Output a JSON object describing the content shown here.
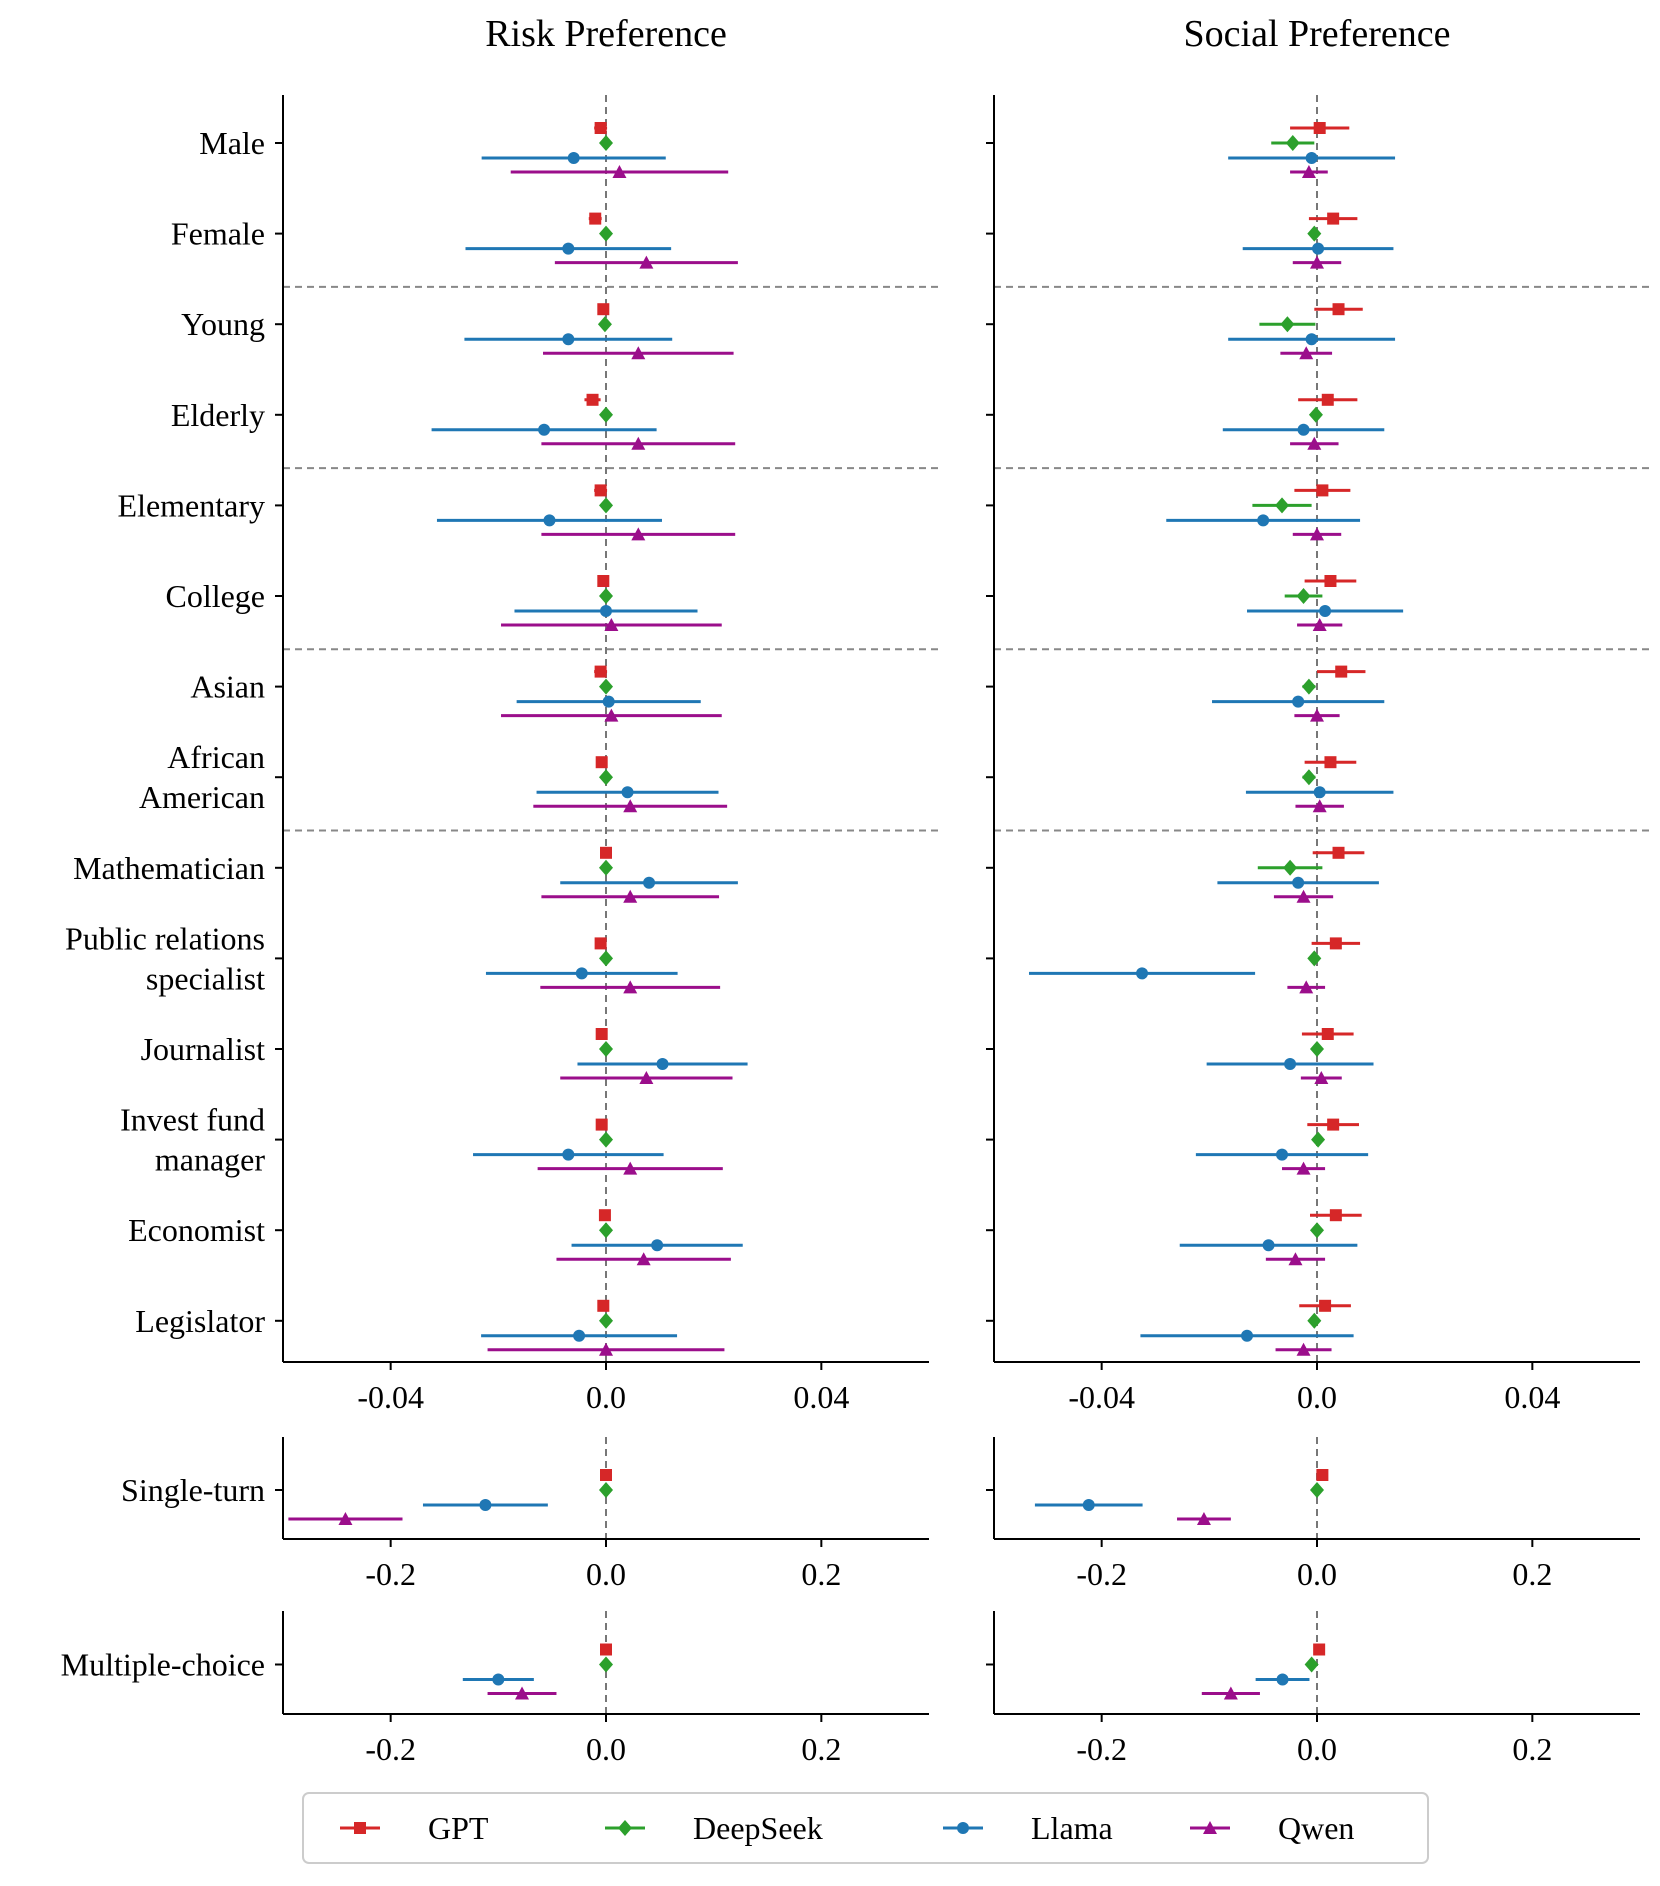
{
  "colors": {
    "GPT": "#d62728",
    "DeepSeek": "#2ca02c",
    "Llama": "#1f77b4",
    "Qwen": "#9b0e8b",
    "GPT_hex": "#d62728"
  },
  "chart_data": [
    {
      "id": "risk-main",
      "type": "forest",
      "title": "Risk Preference",
      "xlim": [
        -0.06,
        0.06
      ],
      "xticks": [
        -0.04,
        0.0,
        0.04
      ],
      "xtick_labels": [
        "-0.04",
        "0.0",
        "0.04"
      ],
      "categories": [
        "Male",
        "Female",
        "Young",
        "Elderly",
        "Elementary",
        "College",
        "Asian",
        "African American",
        "Mathematician",
        "Public relations specialist",
        "Journalist",
        "Invest fund manager",
        "Economist",
        "Legislator"
      ],
      "group_separators_after": [
        1,
        3,
        5,
        7
      ],
      "series": [
        {
          "name": "GPT",
          "values": [
            -0.001,
            -0.002,
            -0.0005,
            -0.0025,
            -0.001,
            -0.0005,
            -0.001,
            -0.0008,
            0.0,
            -0.001,
            -0.0008,
            -0.0008,
            -0.0002,
            -0.0005
          ],
          "errors": [
            0.0012,
            0.0012,
            0.0008,
            0.0015,
            0.0012,
            0.0008,
            0.0012,
            0.0008,
            0.0008,
            0.0008,
            0.0008,
            0.0008,
            0.0008,
            0.0008
          ]
        },
        {
          "name": "DeepSeek",
          "values": [
            0.0,
            0.0,
            -0.0002,
            0.0,
            0.0,
            0.0,
            0.0,
            0.0,
            0.0,
            0.0,
            0.0,
            0.0,
            0.0,
            0.0
          ],
          "errors": [
            0.0003,
            0.0003,
            0.0003,
            0.0003,
            0.0003,
            0.0003,
            0.0003,
            0.0003,
            0.0003,
            0.0003,
            0.0003,
            0.0003,
            0.0003,
            0.0003
          ]
        },
        {
          "name": "Llama",
          "values": [
            -0.006,
            -0.007,
            -0.007,
            -0.0115,
            -0.0105,
            0.0,
            0.0005,
            0.004,
            0.008,
            -0.0045,
            0.0105,
            -0.007,
            0.0095,
            -0.005
          ],
          "errors": [
            0.0171,
            0.0191,
            0.0193,
            0.0209,
            0.0209,
            0.017,
            0.0171,
            0.0169,
            0.0165,
            0.0178,
            0.0158,
            0.0177,
            0.0159,
            0.0182
          ]
        },
        {
          "name": "Qwen",
          "values": [
            0.0025,
            0.0075,
            0.006,
            0.006,
            0.006,
            0.001,
            0.001,
            0.0045,
            0.0045,
            0.0045,
            0.0075,
            0.0045,
            0.007,
            0.0
          ],
          "errors": [
            0.0202,
            0.017,
            0.0177,
            0.018,
            0.018,
            0.0205,
            0.0205,
            0.018,
            0.0165,
            0.0167,
            0.016,
            0.0172,
            0.0162,
            0.022
          ]
        }
      ]
    },
    {
      "id": "social-main",
      "type": "forest",
      "title": "Social Preference",
      "xlim": [
        -0.06,
        0.06
      ],
      "xticks": [
        -0.04,
        0.0,
        0.04
      ],
      "xtick_labels": [
        "-0.04",
        "0.0",
        "0.04"
      ],
      "categories": [
        "Male",
        "Female",
        "Young",
        "Elderly",
        "Elementary",
        "College",
        "Asian",
        "African American",
        "Mathematician",
        "Public relations specialist",
        "Journalist",
        "Invest fund manager",
        "Economist",
        "Legislator"
      ],
      "group_separators_after": [
        1,
        3,
        5,
        7
      ],
      "series": [
        {
          "name": "GPT",
          "values": [
            0.0005,
            0.003,
            0.004,
            0.002,
            0.001,
            0.0025,
            0.0045,
            0.0025,
            0.004,
            0.0035,
            0.002,
            0.003,
            0.0035,
            0.0015
          ],
          "errors": [
            0.0055,
            0.0045,
            0.0045,
            0.0055,
            0.0052,
            0.0048,
            0.0045,
            0.0048,
            0.0048,
            0.0045,
            0.0048,
            0.0048,
            0.0048,
            0.0048
          ]
        },
        {
          "name": "DeepSeek",
          "values": [
            -0.0045,
            -0.0005,
            -0.0055,
            -0.0002,
            -0.0065,
            -0.0025,
            -0.0015,
            -0.0015,
            -0.005,
            -0.0005,
            0.0,
            0.0002,
            0.0,
            -0.0005
          ],
          "errors": [
            0.004,
            0.0008,
            0.0052,
            0.0008,
            0.0055,
            0.0035,
            0.0012,
            0.0012,
            0.006,
            0.0008,
            0.0008,
            0.0008,
            0.0008,
            0.0008
          ]
        },
        {
          "name": "Llama",
          "values": [
            -0.001,
            0.0002,
            -0.001,
            -0.0025,
            -0.01,
            0.0015,
            -0.0035,
            0.0005,
            -0.0035,
            -0.0325,
            -0.005,
            -0.0065,
            -0.009,
            -0.013
          ],
          "errors": [
            0.0155,
            0.014,
            0.0155,
            0.015,
            0.018,
            0.0145,
            0.016,
            0.0137,
            0.015,
            0.021,
            0.0155,
            0.016,
            0.0165,
            0.0198
          ]
        },
        {
          "name": "Qwen",
          "values": [
            -0.0015,
            0.0,
            -0.002,
            -0.0005,
            0.0,
            0.0005,
            0.0,
            0.0005,
            -0.0025,
            -0.002,
            0.0008,
            -0.0025,
            -0.004,
            -0.0025
          ],
          "errors": [
            0.0035,
            0.0045,
            0.0048,
            0.0045,
            0.0045,
            0.0042,
            0.0042,
            0.0045,
            0.0055,
            0.0035,
            0.0038,
            0.004,
            0.0055,
            0.0052
          ]
        }
      ]
    },
    {
      "id": "risk-single",
      "type": "forest",
      "title": "",
      "xlim": [
        -0.3,
        0.3
      ],
      "xticks": [
        -0.2,
        0.0,
        0.2
      ],
      "xtick_labels": [
        "-0.2",
        "0.0",
        "0.2"
      ],
      "categories": [
        "Single-turn"
      ],
      "series": [
        {
          "name": "GPT",
          "values": [
            0.0
          ],
          "errors": [
            0.003
          ]
        },
        {
          "name": "DeepSeek",
          "values": [
            0.0
          ],
          "errors": [
            0.002
          ]
        },
        {
          "name": "Llama",
          "values": [
            -0.112
          ],
          "errors": [
            0.058
          ]
        },
        {
          "name": "Qwen",
          "values": [
            -0.242
          ],
          "errors": [
            0.053
          ]
        }
      ]
    },
    {
      "id": "social-single",
      "type": "forest",
      "title": "",
      "xlim": [
        -0.3,
        0.3
      ],
      "xticks": [
        -0.2,
        0.0,
        0.2
      ],
      "xtick_labels": [
        "-0.2",
        "0.0",
        "0.2"
      ],
      "categories": [
        "Single-turn"
      ],
      "series": [
        {
          "name": "GPT",
          "values": [
            0.005
          ],
          "errors": [
            0.003
          ]
        },
        {
          "name": "DeepSeek",
          "values": [
            0.0
          ],
          "errors": [
            0.002
          ]
        },
        {
          "name": "Llama",
          "values": [
            -0.212
          ],
          "errors": [
            0.05
          ]
        },
        {
          "name": "Qwen",
          "values": [
            -0.105
          ],
          "errors": [
            0.025
          ]
        }
      ]
    },
    {
      "id": "risk-multi",
      "type": "forest",
      "title": "",
      "xlim": [
        -0.3,
        0.3
      ],
      "xticks": [
        -0.2,
        0.0,
        0.2
      ],
      "xtick_labels": [
        "-0.2",
        "0.0",
        "0.2"
      ],
      "categories": [
        "Multiple-choice"
      ],
      "series": [
        {
          "name": "GPT",
          "values": [
            0.0
          ],
          "errors": [
            0.003
          ]
        },
        {
          "name": "DeepSeek",
          "values": [
            0.0
          ],
          "errors": [
            0.002
          ]
        },
        {
          "name": "Llama",
          "values": [
            -0.1
          ],
          "errors": [
            0.033
          ]
        },
        {
          "name": "Qwen",
          "values": [
            -0.078
          ],
          "errors": [
            0.032
          ]
        }
      ]
    },
    {
      "id": "social-multi",
      "type": "forest",
      "title": "",
      "xlim": [
        -0.3,
        0.3
      ],
      "xticks": [
        -0.2,
        0.0,
        0.2
      ],
      "xtick_labels": [
        "-0.2",
        "0.0",
        "0.2"
      ],
      "categories": [
        "Multiple-choice"
      ],
      "series": [
        {
          "name": "GPT",
          "values": [
            0.002
          ],
          "errors": [
            0.003
          ]
        },
        {
          "name": "DeepSeek",
          "values": [
            -0.005
          ],
          "errors": [
            0.003
          ]
        },
        {
          "name": "Llama",
          "values": [
            -0.032
          ],
          "errors": [
            0.025
          ]
        },
        {
          "name": "Qwen",
          "values": [
            -0.08
          ],
          "errors": [
            0.027
          ]
        }
      ]
    }
  ],
  "category_labels": {
    "Male": [
      "Male"
    ],
    "Female": [
      "Female"
    ],
    "Young": [
      "Young"
    ],
    "Elderly": [
      "Elderly"
    ],
    "Elementary": [
      "Elementary"
    ],
    "College": [
      "College"
    ],
    "Asian": [
      "Asian"
    ],
    "African American": [
      "African",
      "American"
    ],
    "Mathematician": [
      "Mathematician"
    ],
    "Public relations specialist": [
      "Public relations",
      "specialist"
    ],
    "Journalist": [
      "Journalist"
    ],
    "Invest fund manager": [
      "Invest fund",
      "manager"
    ],
    "Economist": [
      "Economist"
    ],
    "Legislator": [
      "Legislator"
    ],
    "Single-turn": [
      "Single-turn"
    ],
    "Multiple-choice": [
      "Multiple-choice"
    ]
  },
  "legend": {
    "position": "bottom-center",
    "entries": [
      {
        "name": "GPT",
        "label": "GPT",
        "marker": "square"
      },
      {
        "name": "DeepSeek",
        "label": "DeepSeek",
        "marker": "diamond"
      },
      {
        "name": "Llama",
        "label": "Llama",
        "marker": "circle"
      },
      {
        "name": "Qwen",
        "label": "Qwen",
        "marker": "triangle"
      }
    ]
  }
}
